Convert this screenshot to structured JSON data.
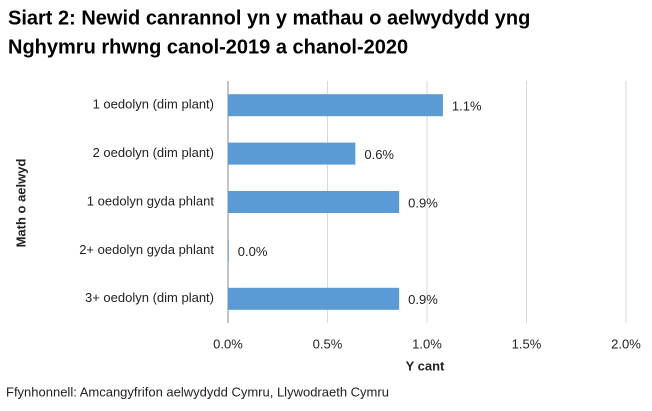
{
  "chart_data": {
    "type": "bar",
    "orientation": "horizontal",
    "title": [
      "Siart 2: Newid canrannol yn y mathau o aelwydydd yng",
      "Nghymru rhwng canol-2019 a chanol-2020"
    ],
    "categories": [
      "1 oedolyn (dim plant)",
      "2 oedolyn (dim plant)",
      "1 oedolyn gyda phlant",
      "2+ oedolyn gyda phlant",
      "3+ oedolyn (dim plant)"
    ],
    "values": [
      1.08,
      0.64,
      0.86,
      0.004,
      0.86
    ],
    "value_labels": [
      "1.1%",
      "0.6%",
      "0.9%",
      "0.0%",
      "0.9%"
    ],
    "color": "#5b9bd5",
    "xlim": [
      0,
      2
    ],
    "xticks": [
      {
        "value": 0,
        "label": "0.0%"
      },
      {
        "value": 0.5,
        "label": "0.5%"
      },
      {
        "value": 1,
        "label": "1.0%"
      },
      {
        "value": 1.5,
        "label": "1.5%"
      },
      {
        "value": 2,
        "label": "2.0%"
      }
    ],
    "xlabel": "Y cant",
    "ylabel": "Math o aelwyd",
    "grid": true,
    "source": "Ffynhonnell: Amcangyfrifon aelwydydd Cymru, Llywodraeth Cymru"
  }
}
